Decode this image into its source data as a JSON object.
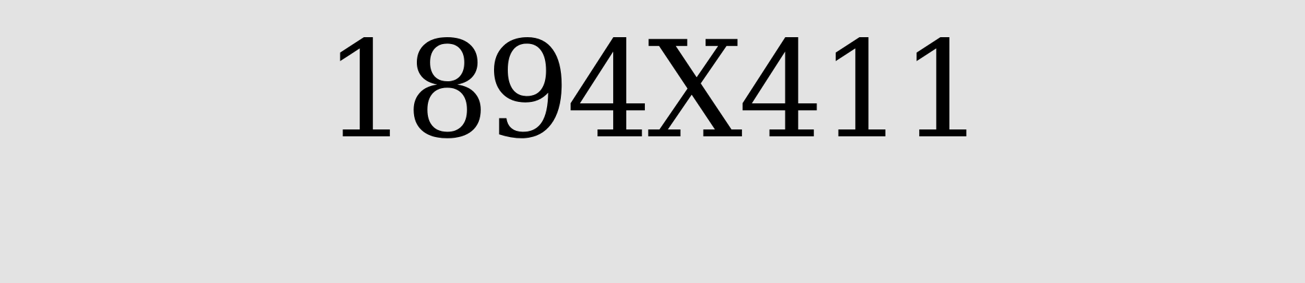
{
  "label": {
    "text": "1894X411"
  },
  "colors": {
    "background": "#e3e3e3",
    "text": "#000000"
  }
}
